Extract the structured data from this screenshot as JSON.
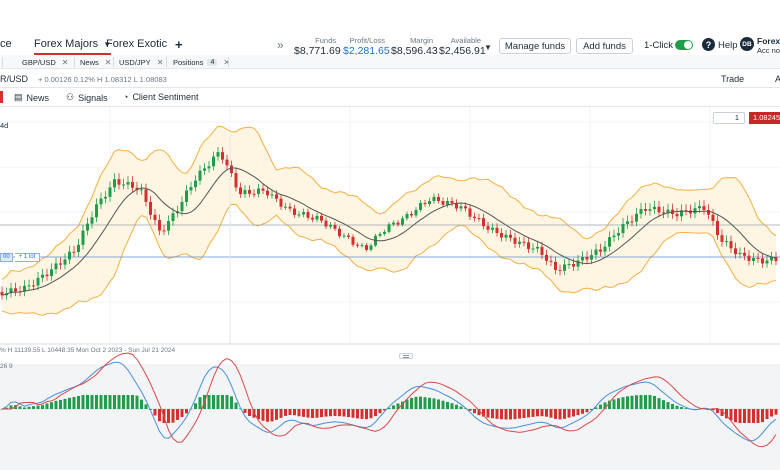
{
  "workspace_tabs": [
    {
      "label": "ce"
    },
    {
      "label": "Forex Majors",
      "active": true
    },
    {
      "label": "Forex Exotic"
    }
  ],
  "account": {
    "funds_label": "Funds",
    "funds": "$8,771.69",
    "pl_label": "Profit/Loss",
    "pl": "$2,281.65",
    "margin_label": "Margin",
    "margin": "$8,596.43",
    "available_label": "Available",
    "available": "$2,456.91"
  },
  "buttons": {
    "manage_funds": "Manage funds",
    "add_funds": "Add funds",
    "one_click": "1-Click",
    "help": "Help"
  },
  "user": {
    "initials": "DB",
    "name": "Forex",
    "acc_no": "Acc no."
  },
  "instrument_tabs": [
    {
      "label": "GBP/USD"
    },
    {
      "label": "News"
    },
    {
      "label": "USD/JPY"
    },
    {
      "label": "Positions",
      "count": "4"
    }
  ],
  "symbol": "R/USD",
  "ohlc": "+ 0.00126  0.12%  H 1.08312  L 1.08083",
  "trade_label": "Trade",
  "trade_suffix": "A",
  "sub_tabs": [
    {
      "label": "News",
      "icon": "news-icon"
    },
    {
      "label": "Signals",
      "icon": "signals-icon"
    },
    {
      "label": "Client Sentiment",
      "icon": "sentiment-icon"
    }
  ],
  "timeframe": "4d",
  "quantity": "1",
  "price_tag": "1.08245",
  "position_tag": {
    "left": "00",
    "right": "+ 1 lot"
  },
  "range_info": "%   H 11139.55   L 10448.35   Mon Oct 2 2023 - Sun Jul 21 2024",
  "macd_info": "26  9",
  "colors": {
    "up": "#1f9d49",
    "down": "#d32f2f",
    "band": "#f5b041",
    "band_fill": "#fef5e3",
    "ma": "#555555",
    "macd_line": "#4a90d9",
    "signal_line": "#d84a4a"
  }
}
